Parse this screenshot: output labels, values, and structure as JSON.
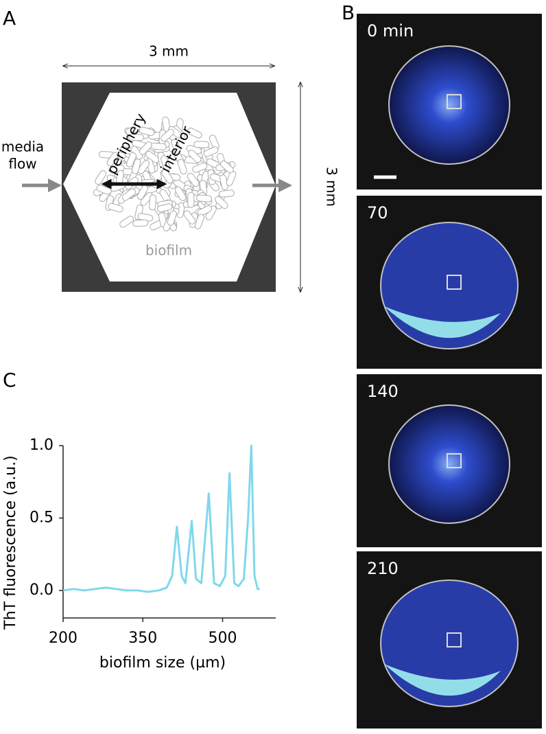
{
  "panels": {
    "a": "A",
    "b": "B",
    "c": "C"
  },
  "diagram": {
    "width_label": "3 mm",
    "height_label": "3 mm",
    "flow_label": [
      "media",
      "flow"
    ],
    "periphery": "periphery",
    "interior": "interior",
    "biofilm": "biofilm"
  },
  "micrographs": [
    {
      "label": "0 min"
    },
    {
      "label": "70"
    },
    {
      "label": "140"
    },
    {
      "label": "210"
    }
  ],
  "chart_data": {
    "type": "line",
    "xlabel": "biofilm size (µm)",
    "ylabel": "ThT fluorescence (a.u.)",
    "x": [
      200,
      220,
      240,
      260,
      280,
      300,
      320,
      340,
      360,
      380,
      395,
      405,
      414,
      423,
      430,
      442,
      450,
      460,
      474,
      484,
      495,
      505,
      513,
      522,
      530,
      540,
      548,
      554,
      560,
      566,
      570
    ],
    "series": [
      {
        "color": "#7fd8ec",
        "values": [
          0,
          0.01,
          0,
          0.01,
          0.02,
          0.01,
          0,
          0,
          -0.01,
          0,
          0.02,
          0.1,
          0.44,
          0.1,
          0.05,
          0.48,
          0.08,
          0.05,
          0.67,
          0.05,
          0.03,
          0.1,
          0.81,
          0.05,
          0.03,
          0.08,
          0.5,
          1.0,
          0.1,
          0.01,
          0.01
        ]
      }
    ],
    "xlim": [
      200,
      600
    ],
    "xticks": [
      200,
      350,
      500
    ],
    "ylim": [
      -0.19,
      1.0
    ],
    "yticks": [
      {
        "value": 0,
        "label": "0.0"
      },
      0.5,
      {
        "value": 1,
        "label": "1.0"
      }
    ],
    "grid": false
  }
}
